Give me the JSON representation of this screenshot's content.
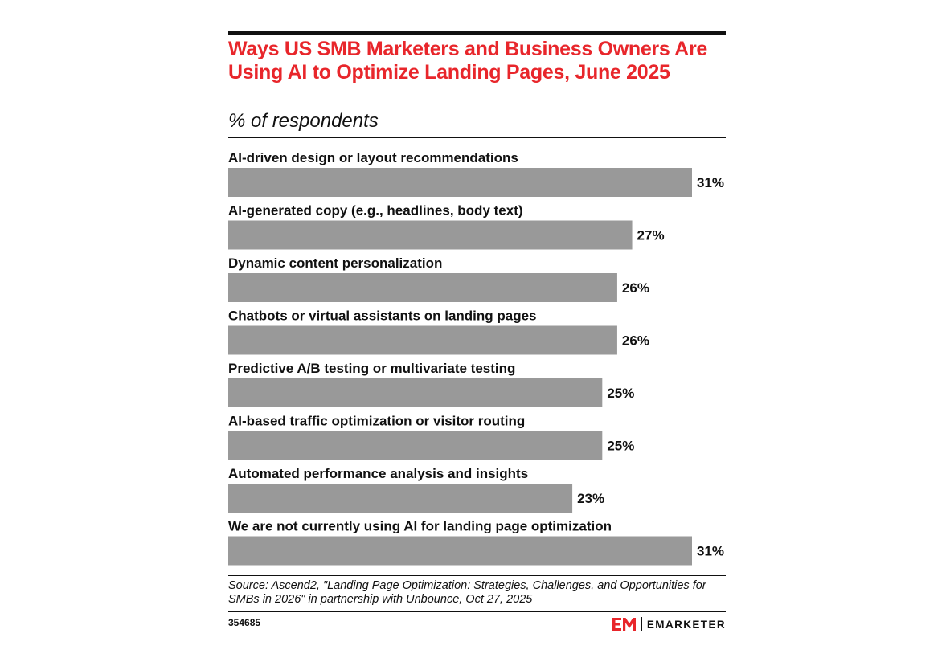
{
  "title": "Ways US SMB Marketers and Business Owners Are Using AI to Optimize Landing Pages, June 2025",
  "subtitle": "% of respondents",
  "chart_data": {
    "type": "bar",
    "orientation": "horizontal",
    "title": "Ways US SMB Marketers and Business Owners Are Using AI to Optimize Landing Pages, June 2025",
    "ylabel": "% of respondents",
    "xlim": [
      0,
      31
    ],
    "grid": false,
    "legend": "none",
    "categories": [
      "AI-driven design or layout recommendations",
      "AI-generated copy (e.g., headlines, body text)",
      "Dynamic content personalization",
      "Chatbots or virtual assistants on landing pages",
      "Predictive A/B testing or multivariate testing",
      "AI-based traffic optimization or visitor routing",
      "Automated performance analysis and insights",
      "We are not currently using AI for landing page optimization"
    ],
    "values": [
      31,
      27,
      26,
      26,
      25,
      25,
      23,
      31
    ],
    "value_labels": [
      "31%",
      "27%",
      "26%",
      "26%",
      "25%",
      "25%",
      "23%",
      "31%"
    ],
    "bar_color": "#999999"
  },
  "source": "Source: Ascend2, \"Landing Page Optimization: Strategies, Challenges, and Opportunities for SMBs in 2026\" in partnership with Unbounce, Oct 27, 2025",
  "chart_id": "354685",
  "brand": {
    "logo_icon": "em-logo-icon",
    "name": "EMARKETER",
    "accent_color": "#e8262b"
  },
  "colors": {
    "title": "#e8262b",
    "text": "#111111",
    "bar": "#999999"
  }
}
